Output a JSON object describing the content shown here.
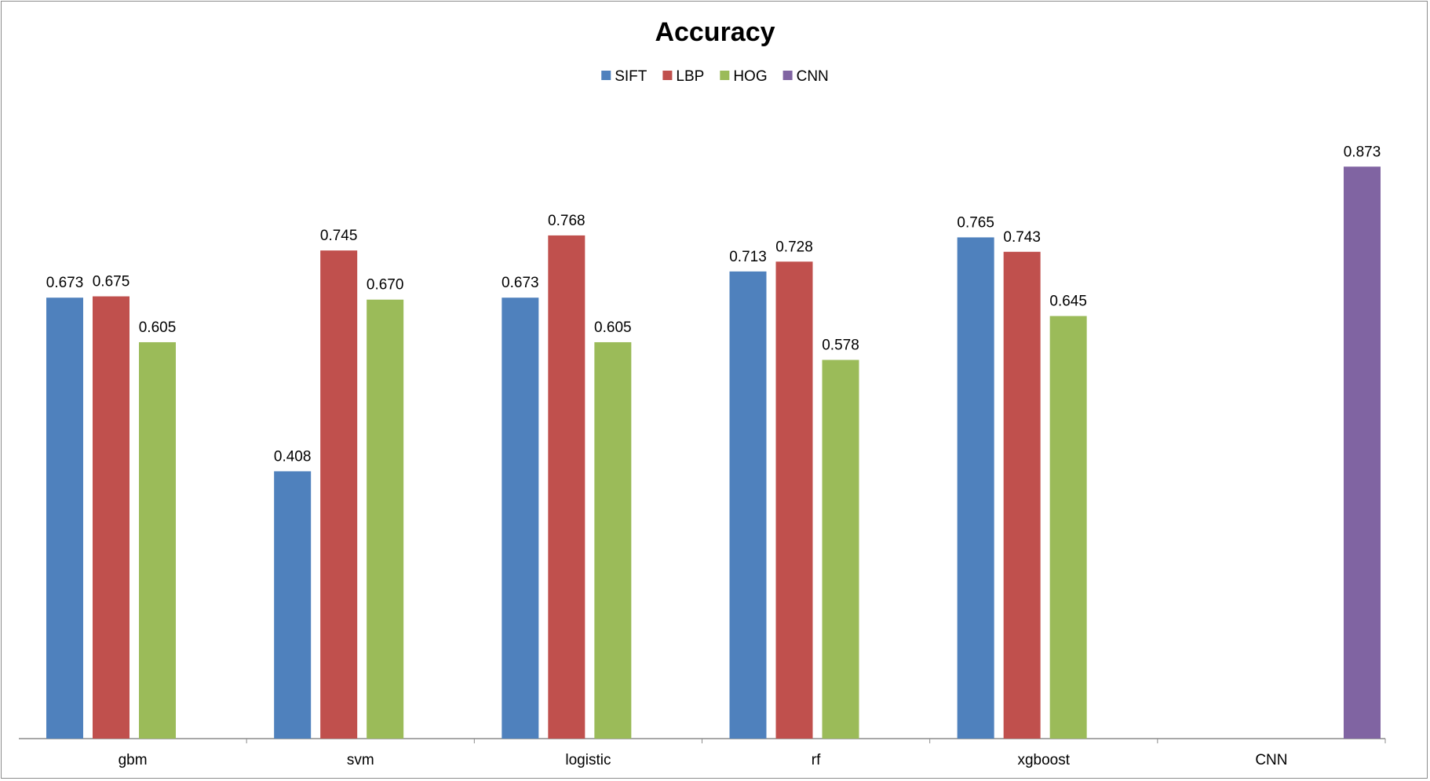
{
  "chart_data": {
    "type": "bar",
    "title": "Accuracy",
    "xlabel": "",
    "ylabel": "",
    "ylim": [
      0,
      0.95
    ],
    "grid": false,
    "legend_position": "top-center",
    "categories": [
      "gbm",
      "svm",
      "logistic",
      "rf",
      "xgboost",
      "CNN"
    ],
    "series": [
      {
        "name": "SIFT",
        "color": "#4f81bd",
        "values": [
          0.673,
          0.408,
          0.673,
          0.713,
          0.765,
          null
        ]
      },
      {
        "name": "LBP",
        "color": "#c0504d",
        "values": [
          0.675,
          0.745,
          0.768,
          0.728,
          0.743,
          null
        ]
      },
      {
        "name": "HOG",
        "color": "#9bbb59",
        "values": [
          0.605,
          0.67,
          0.605,
          0.578,
          0.645,
          null
        ]
      },
      {
        "name": "CNN",
        "color": "#8064a2",
        "values": [
          null,
          null,
          null,
          null,
          null,
          0.873
        ]
      }
    ]
  }
}
